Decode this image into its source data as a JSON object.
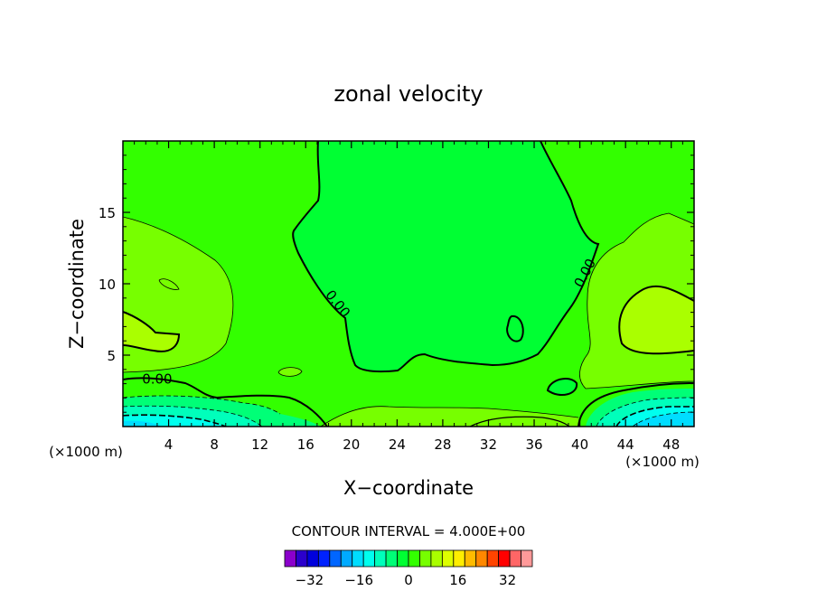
{
  "chart_data": {
    "type": "heatmap",
    "title": "zonal velocity",
    "xlabel": "X−coordinate",
    "ylabel": "Z−coordinate",
    "x_unit_left": "(×1000 m)",
    "x_unit_right": "(×1000 m)",
    "xlim": [
      0,
      50
    ],
    "ylim": [
      0,
      20
    ],
    "x_ticks": [
      4,
      8,
      12,
      16,
      20,
      24,
      28,
      32,
      36,
      40,
      44,
      48
    ],
    "y_ticks": [
      5,
      10,
      15
    ],
    "contour_interval_text": "CONTOUR INTERVAL = 4.000E+00",
    "contour_labels": [
      {
        "text": "0.00",
        "x": 3.0,
        "y": 3.0
      },
      {
        "text": "0.00",
        "x": 18.5,
        "y": 8.4
      },
      {
        "text": "0.00",
        "x": 40.8,
        "y": 10.6
      }
    ],
    "colorbar": {
      "min": -40,
      "max": 40,
      "step": 4,
      "tick_labels": [
        "−32",
        "−16",
        "0",
        "16",
        "32"
      ],
      "tick_values": [
        -32,
        -16,
        0,
        16,
        32
      ],
      "colors": [
        "#8b00cc",
        "#2b00cc",
        "#0000dd",
        "#0022ff",
        "#0066ff",
        "#00aaff",
        "#00ddff",
        "#00ffee",
        "#00ffbb",
        "#00ff77",
        "#00ff33",
        "#33ff00",
        "#77ff00",
        "#aaff00",
        "#ddff00",
        "#ffee00",
        "#ffbb00",
        "#ff8800",
        "#ff4400",
        "#ff0000",
        "#ff6666",
        "#ff9999"
      ]
    },
    "regions": {
      "background_color": "#33ff00",
      "center_zone_color": "#00ff33",
      "positive_zone_color": "#77ff00",
      "strong_positive_color": "#aaff00",
      "negative_colors": [
        "#00ff77",
        "#00ffbb",
        "#00ffee",
        "#00ddff"
      ]
    }
  }
}
